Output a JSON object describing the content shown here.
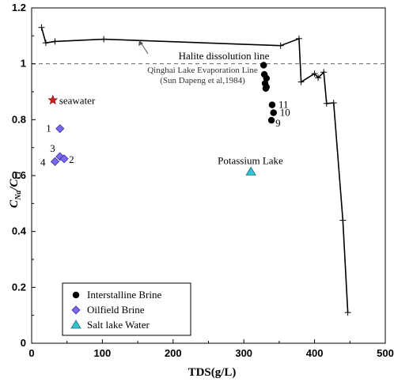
{
  "chart_data": {
    "type": "scatter",
    "xlabel": "TDS(g/L)",
    "ylabel": "C_Na/C_Cl",
    "ylabel_main": "C",
    "ylabel_sub1": "Na",
    "ylabel_slash": "/C",
    "ylabel_sub2": "Cl",
    "xlim": [
      0,
      500
    ],
    "ylim": [
      0,
      1.2
    ],
    "xticks": [
      0,
      100,
      200,
      300,
      400,
      500
    ],
    "yticks": [
      0,
      0.2,
      0.4,
      0.6,
      0.8,
      1.0,
      1.2
    ],
    "xtick_labels": [
      "0",
      "100",
      "200",
      "300",
      "400",
      "500"
    ],
    "ytick_labels": [
      "0",
      "0.2",
      "0.4",
      "0.6",
      "0.8",
      "1",
      "1.2"
    ],
    "reference_line": {
      "y": 1.0,
      "label": "Halite dissolution line",
      "style": "dashed"
    },
    "evaporation_line": {
      "label_line1": "Qinghai Lake Evaporation Line",
      "label_line2": "(Sun Dapeng et al,1984)",
      "points": [
        [
          14,
          1.13
        ],
        [
          20,
          1.075
        ],
        [
          33,
          1.08
        ],
        [
          102,
          1.088
        ],
        [
          352,
          1.065
        ],
        [
          378,
          1.09
        ],
        [
          381,
          0.935
        ],
        [
          400,
          0.965
        ],
        [
          405,
          0.95
        ],
        [
          413,
          0.97
        ],
        [
          417,
          0.858
        ],
        [
          427,
          0.86
        ],
        [
          440,
          0.44
        ],
        [
          447,
          0.11
        ]
      ],
      "marker_points": [
        [
          14,
          1.13
        ],
        [
          20,
          1.075
        ],
        [
          33,
          1.08
        ],
        [
          102,
          1.088
        ],
        [
          352,
          1.065
        ],
        [
          378,
          1.09
        ],
        [
          381,
          0.935
        ],
        [
          400,
          0.965
        ],
        [
          405,
          0.95
        ],
        [
          413,
          0.97
        ],
        [
          417,
          0.858
        ],
        [
          427,
          0.86
        ],
        [
          440,
          0.44
        ],
        [
          447,
          0.11
        ]
      ]
    },
    "series": [
      {
        "name": "Interstalline Brine",
        "marker": "circle",
        "color": "#000000",
        "points": [
          [
            328,
            0.995
          ],
          [
            329,
            0.962
          ],
          [
            332,
            0.948
          ],
          [
            330,
            0.93
          ],
          [
            332,
            0.917
          ],
          [
            331,
            0.912
          ],
          [
            340,
            0.853
          ],
          [
            342,
            0.825
          ],
          [
            339,
            0.798
          ]
        ],
        "labels": [
          "",
          "",
          "",
          "",
          "",
          "",
          "11",
          "10",
          "9"
        ]
      },
      {
        "name": "Oilfield Brine",
        "marker": "diamond",
        "color": "#7b68ee",
        "points": [
          [
            40,
            0.768
          ],
          [
            40,
            0.668
          ],
          [
            33,
            0.65
          ],
          [
            46,
            0.66
          ]
        ],
        "labels": [
          "1",
          "3",
          "4",
          "2"
        ]
      },
      {
        "name": "Salt lake Water",
        "marker": "triangle",
        "color": "#33c1d6",
        "points": [
          [
            310,
            0.613
          ]
        ],
        "labels": [
          "Potassium Lake"
        ]
      }
    ],
    "extra_points": [
      {
        "name": "seawater",
        "marker": "star",
        "color": "#cc1f1f",
        "x": 30,
        "y": 0.87,
        "label": "seawater"
      }
    ],
    "legend": {
      "position": "bottom-left",
      "entries": [
        "Interstalline Brine",
        "Oilfield Brine",
        "Salt lake Water"
      ]
    },
    "grid": false
  }
}
